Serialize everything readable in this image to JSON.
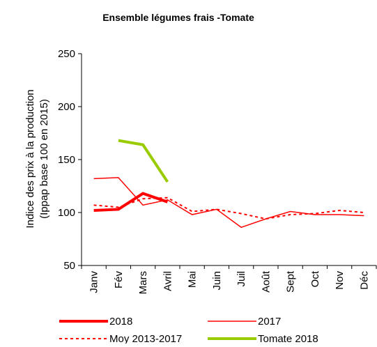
{
  "chart_data": {
    "type": "line",
    "title": "Ensemble légumes frais -Tomate",
    "ylabel": [
      "Indice des prix à la production",
      "(Ippap base 100 en 2015)"
    ],
    "categories": [
      "Janv",
      "Fév",
      "Mars",
      "Avril",
      "Mai",
      "Juin",
      "Juil",
      "Août",
      "Sept",
      "Oct",
      "Nov",
      "Déc"
    ],
    "series": [
      {
        "name": "2018",
        "color": "#ff0000",
        "linewidth": 4,
        "dashed": false,
        "values": [
          102,
          103,
          118,
          110,
          null,
          null,
          null,
          null,
          null,
          null,
          null,
          null
        ]
      },
      {
        "name": "2017",
        "color": "#ff0000",
        "linewidth": 1.5,
        "dashed": false,
        "values": [
          132,
          133,
          107,
          112,
          98,
          103,
          86,
          94,
          101,
          98,
          98,
          97
        ]
      },
      {
        "name": "Moy 2013-2017",
        "color": "#ff0000",
        "linewidth": 2,
        "dashed": true,
        "values": [
          107,
          105,
          113,
          114,
          101,
          103,
          99,
          94,
          98,
          99,
          102,
          100
        ]
      },
      {
        "name": "Tomate 2018",
        "color": "#99cc00",
        "linewidth": 4,
        "dashed": false,
        "values": [
          null,
          168,
          164,
          129,
          null,
          null,
          null,
          null,
          null,
          null,
          null,
          null
        ]
      }
    ],
    "ylim": [
      50,
      250
    ],
    "yticks": [
      50,
      100,
      150,
      200,
      250
    ],
    "grid": false,
    "legend": "bottom"
  }
}
